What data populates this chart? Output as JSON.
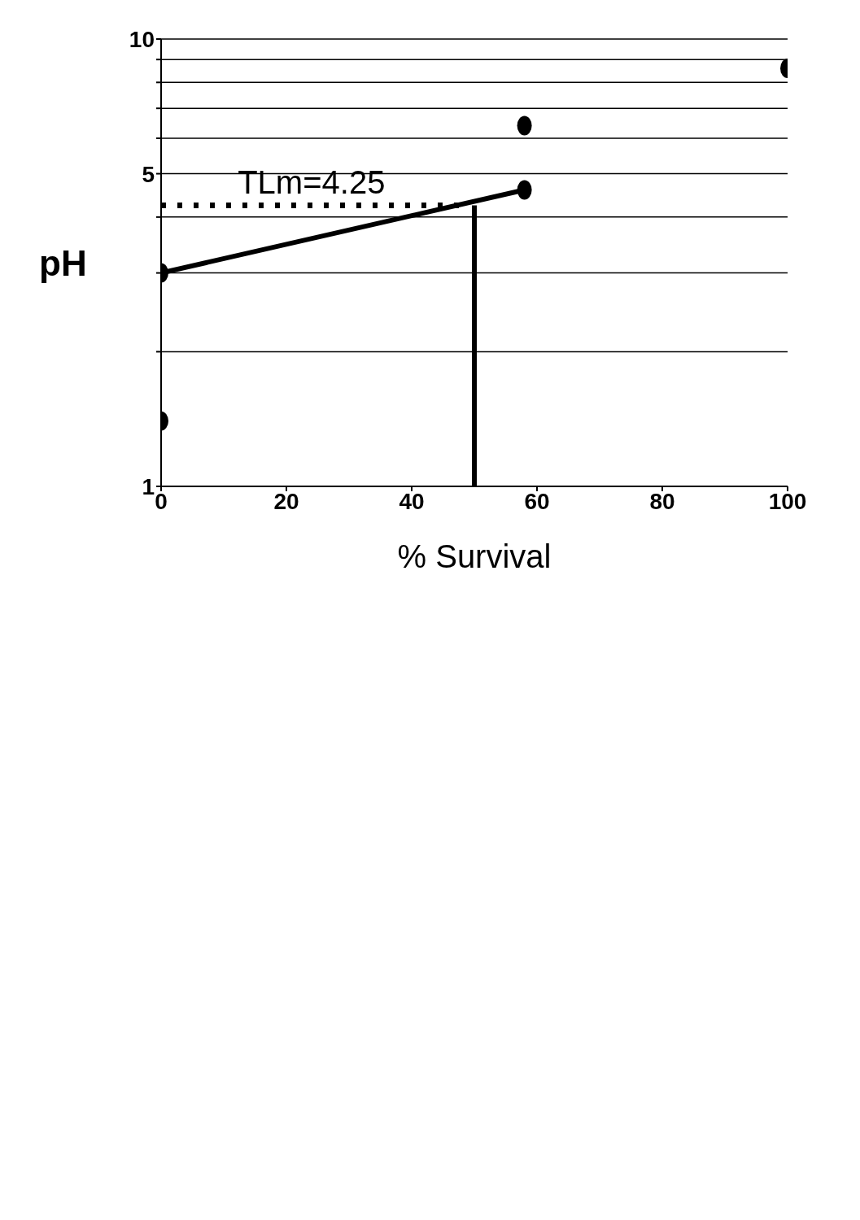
{
  "chart_data": {
    "type": "scatter",
    "xlabel": "% Survival",
    "ylabel": "pH",
    "log": "y",
    "grid": "y",
    "marker": "circle",
    "xlim": [
      0,
      100
    ],
    "xticks": [
      0,
      20,
      40,
      60,
      80,
      100
    ],
    "ylim": [
      1,
      10
    ],
    "yticks": [
      1,
      {
        "value": 2,
        "label": null
      },
      {
        "value": 3,
        "label": null
      },
      {
        "value": 4,
        "label": null
      },
      5,
      {
        "value": 6,
        "label": null
      },
      {
        "value": 7,
        "label": null
      },
      {
        "value": 8,
        "label": null
      },
      {
        "value": 9,
        "label": null
      },
      10
    ],
    "series": [
      {
        "color": "#000000",
        "x": [
          0,
          0,
          58,
          58,
          100
        ],
        "values": [
          1.4,
          3.0,
          4.6,
          6.4,
          8.6
        ]
      },
      {
        "type": "line",
        "color": "#000000",
        "marker": "none",
        "line_style": "solid",
        "x": [
          0,
          58
        ],
        "values": [
          3.0,
          4.6
        ]
      },
      {
        "type": "line",
        "color": "#000000",
        "marker": "none",
        "line_style": "solid",
        "x": [
          50,
          50
        ],
        "values": [
          1,
          4.25
        ]
      },
      {
        "type": "line",
        "color": "#000000",
        "marker": "none",
        "line_style": "dotted",
        "x": [
          0,
          48
        ],
        "values": [
          4.25,
          4.25
        ]
      }
    ],
    "annotations": [
      {
        "text": "TLm=4.25",
        "x": 24,
        "y": 4.25
      }
    ]
  }
}
